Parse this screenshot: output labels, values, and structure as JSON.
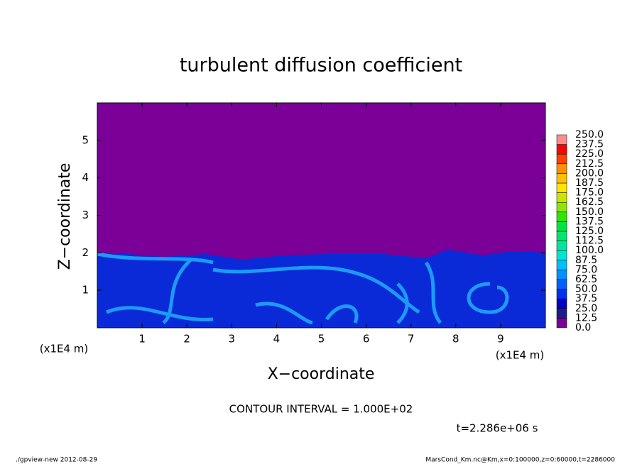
{
  "chart_data": {
    "type": "heatmap",
    "title": "turbulent diffusion coefficient",
    "x_label": "X−coordinate",
    "y_label": "Z−coordinate",
    "x_unit": "(x1E4 m)",
    "xlim": [
      0,
      10
    ],
    "xticks": [
      1,
      2,
      3,
      4,
      5,
      6,
      7,
      8,
      9
    ],
    "ylim": [
      0,
      6
    ],
    "yticks": [
      1,
      2,
      3,
      4,
      5
    ],
    "colorbar": {
      "levels": [
        {
          "value": 0,
          "label": "0.0"
        },
        {
          "value": 12.5,
          "label": "12.5"
        },
        {
          "value": 25,
          "label": "25.0"
        },
        {
          "value": 37.5,
          "label": "37.5"
        },
        {
          "value": 50,
          "label": "50.0"
        },
        {
          "value": 62.5,
          "label": "62.5"
        },
        {
          "value": 75,
          "label": "75.0"
        },
        {
          "value": 87.5,
          "label": "87.5"
        },
        {
          "value": 100,
          "label": "100.0"
        },
        {
          "value": 112.5,
          "label": "112.5"
        },
        {
          "value": 125,
          "label": "125.0"
        },
        {
          "value": 137.5,
          "label": "137.5"
        },
        {
          "value": 150,
          "label": "150.0"
        },
        {
          "value": 162.5,
          "label": "162.5"
        },
        {
          "value": 175,
          "label": "175.0"
        },
        {
          "value": 187.5,
          "label": "187.5"
        },
        {
          "value": 200,
          "label": "200.0"
        },
        {
          "value": 212.5,
          "label": "212.5"
        },
        {
          "value": 225,
          "label": "225.0"
        },
        {
          "value": 237.5,
          "label": "237.5"
        },
        {
          "value": 250,
          "label": "250.0"
        }
      ],
      "colors": [
        "#7a0098",
        "#1c1c8c",
        "#0000c8",
        "#0030f0",
        "#0060ff",
        "#0090ff",
        "#00c0ff",
        "#00e6d2",
        "#00e6a0",
        "#00e670",
        "#00e640",
        "#30e600",
        "#90e600",
        "#c8e600",
        "#ffe600",
        "#ffc000",
        "#ff9000",
        "#ff4000",
        "#ff0000",
        "#ff8c8c"
      ]
    },
    "contour_note": "CONTOUR INTERVAL = 1.000E+02",
    "time_label": "t=2.286e+06 s",
    "footer_left": "./gpview-new   2012-08-29",
    "footer_right": "MarsCond_Km.nc@Km,x=0:100000,z=0:60000,t=2286000"
  }
}
